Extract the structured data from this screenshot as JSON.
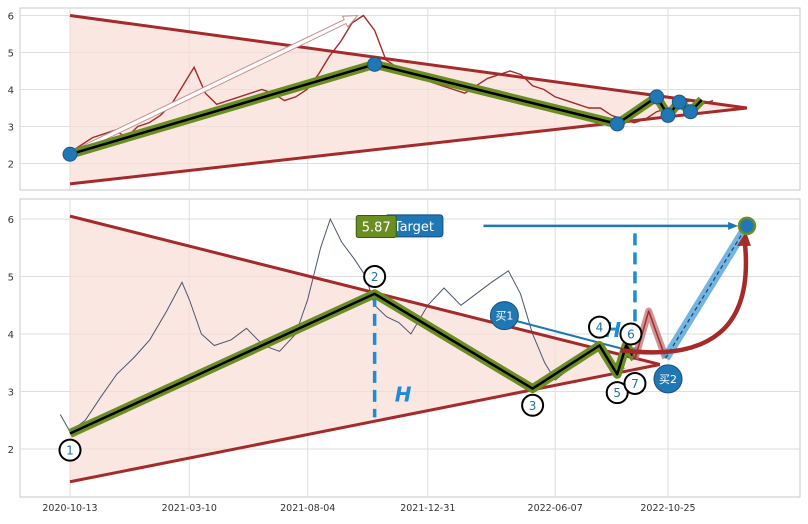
{
  "chart_data": [
    {
      "type": "line",
      "panel": "top",
      "ylim": [
        1.2,
        6.3
      ],
      "yticks": [
        2,
        3,
        4,
        5,
        6
      ],
      "grid": true,
      "price_series": {
        "name": "",
        "x": [
          "2020-10-13",
          "2020-10-27",
          "2020-11-10",
          "2020-11-24",
          "2020-12-08",
          "2020-12-22",
          "2021-01-05",
          "2021-01-19",
          "2021-02-02",
          "2021-02-16",
          "2021-03-02",
          "2021-03-16",
          "2021-03-30",
          "2021-04-13",
          "2021-04-27",
          "2021-05-11",
          "2021-05-25",
          "2021-06-08",
          "2021-06-22",
          "2021-07-06",
          "2021-07-20",
          "2021-08-03",
          "2021-08-17",
          "2021-08-31",
          "2021-09-14",
          "2021-09-28",
          "2021-10-12",
          "2021-10-26",
          "2021-11-09",
          "2021-11-23",
          "2021-12-07",
          "2021-12-21",
          "2022-01-04",
          "2022-01-18",
          "2022-02-01",
          "2022-02-15",
          "2022-03-01",
          "2022-03-15",
          "2022-03-29",
          "2022-04-12",
          "2022-04-26",
          "2022-05-10",
          "2022-05-24",
          "2022-06-07",
          "2022-06-21",
          "2022-07-05",
          "2022-07-19",
          "2022-08-02",
          "2022-08-16",
          "2022-08-30",
          "2022-09-13",
          "2022-09-27",
          "2022-10-11",
          "2022-10-25",
          "2022-11-08",
          "2022-11-22",
          "2022-12-06",
          "2022-12-20"
        ],
        "y": [
          2.3,
          2.5,
          2.7,
          2.8,
          2.9,
          2.7,
          3.0,
          3.1,
          3.3,
          3.6,
          4.1,
          4.6,
          3.9,
          3.6,
          3.7,
          3.8,
          3.9,
          4.0,
          3.9,
          3.7,
          3.8,
          4.0,
          4.4,
          4.9,
          5.3,
          5.8,
          6.0,
          5.6,
          4.8,
          4.6,
          4.5,
          4.4,
          4.2,
          4.1,
          4.0,
          3.9,
          4.1,
          4.3,
          4.4,
          4.5,
          4.4,
          4.1,
          4.0,
          3.8,
          3.7,
          3.6,
          3.5,
          3.5,
          3.3,
          3.2,
          3.1,
          3.2,
          3.4,
          3.5,
          3.6,
          3.7,
          3.6,
          3.7
        ]
      },
      "zigzag": {
        "x": [
          "2020-10-13",
          "2021-10-26",
          "2022-08-23",
          "2022-10-11",
          "2022-10-25",
          "2022-11-08",
          "2022-11-22",
          "2022-12-06"
        ],
        "y": [
          2.25,
          4.68,
          3.07,
          3.8,
          3.3,
          3.66,
          3.4,
          3.72
        ]
      },
      "pivot_markers": {
        "x": [
          "2020-10-13",
          "2021-10-26",
          "2022-08-23",
          "2022-10-11",
          "2022-10-25",
          "2022-11-08",
          "2022-11-22"
        ],
        "y": [
          2.25,
          4.68,
          3.07,
          3.8,
          3.3,
          3.66,
          3.4
        ]
      },
      "triangle": {
        "x": [
          "2020-10-13",
          "2023-01-31",
          "2020-10-13"
        ],
        "y": [
          6.0,
          3.5,
          1.45
        ]
      },
      "projection_arrow": {
        "x": [
          "2020-10-13",
          "2021-10-05"
        ],
        "y": [
          2.25,
          6.0
        ]
      }
    },
    {
      "type": "line",
      "panel": "bottom",
      "ylim": [
        1.2,
        6.3
      ],
      "yticks": [
        2,
        3,
        4,
        5,
        6
      ],
      "xticks": [
        "2020-10-13",
        "2021-03-10",
        "2021-08-04",
        "2021-12-31",
        "2022-06-07",
        "2022-10-25"
      ],
      "grid": true,
      "price_series": {
        "name": "",
        "x": [
          "2020-10-01",
          "2020-10-13",
          "2020-11-01",
          "2020-11-20",
          "2020-12-10",
          "2021-01-01",
          "2021-01-20",
          "2021-02-10",
          "2021-03-01",
          "2021-03-10",
          "2021-03-25",
          "2021-04-10",
          "2021-05-01",
          "2021-05-20",
          "2021-06-10",
          "2021-06-30",
          "2021-07-20",
          "2021-08-04",
          "2021-08-20",
          "2021-09-01",
          "2021-09-15",
          "2021-10-01",
          "2021-10-15",
          "2021-10-26",
          "2021-11-10",
          "2021-11-25",
          "2021-12-10",
          "2021-12-31",
          "2022-01-20",
          "2022-02-10",
          "2022-03-01",
          "2022-03-20",
          "2022-04-10",
          "2022-04-25",
          "2022-05-10",
          "2022-05-25",
          "2022-06-07",
          "2022-06-25",
          "2022-07-10",
          "2022-07-25",
          "2022-08-10",
          "2022-08-20",
          "2022-09-01"
        ],
        "y": [
          2.6,
          2.3,
          2.5,
          2.9,
          3.3,
          3.6,
          3.9,
          4.4,
          4.9,
          4.6,
          4.0,
          3.8,
          3.9,
          4.1,
          3.8,
          3.7,
          4.0,
          4.6,
          5.5,
          6.0,
          5.6,
          5.3,
          5.0,
          4.5,
          4.3,
          4.2,
          4.0,
          4.5,
          4.8,
          4.5,
          4.7,
          4.9,
          5.1,
          4.7,
          4.0,
          3.5,
          3.2,
          3.4,
          3.6,
          3.8,
          3.7,
          3.5,
          3.4
        ]
      },
      "zigzag": {
        "x": [
          "2020-10-13",
          "2021-10-26",
          "2022-05-10",
          "2022-08-01",
          "2022-08-23",
          "2022-09-03",
          "2022-09-14"
        ],
        "y": [
          2.27,
          4.7,
          3.05,
          3.8,
          3.3,
          3.8,
          3.57
        ]
      },
      "pink_zigzag": {
        "x": [
          "2022-09-14",
          "2022-10-01",
          "2022-10-22"
        ],
        "y": [
          3.57,
          4.4,
          3.58
        ]
      },
      "blue_thin_line": {
        "x": [
          "2022-04-05",
          "2022-09-10"
        ],
        "y": [
          4.28,
          3.7
        ]
      },
      "triangle": {
        "x": [
          "2020-10-13",
          "2022-10-15",
          "2020-10-13"
        ],
        "y": [
          6.05,
          3.47,
          1.43
        ]
      },
      "target_path": {
        "x": [
          "2022-10-22",
          "2023-01-31"
        ],
        "y": [
          3.58,
          5.88
        ]
      },
      "target_arrow": {
        "x": [
          "2022-03-10",
          "2023-01-20"
        ],
        "y": [
          5.88,
          5.88
        ]
      },
      "height_measures": [
        {
          "x": "2021-10-26",
          "y_top": 4.68,
          "y_bottom": 2.55
        },
        {
          "x": "2022-09-14",
          "y_top": 5.75,
          "y_bottom": 3.6
        }
      ],
      "labels": {
        "target": "Target",
        "value_box": "5.87",
        "buy1": "买1",
        "buy2": "买2",
        "h": "H",
        "pivots": [
          "1",
          "2",
          "3",
          "4",
          "5",
          "6",
          "7"
        ]
      }
    }
  ]
}
